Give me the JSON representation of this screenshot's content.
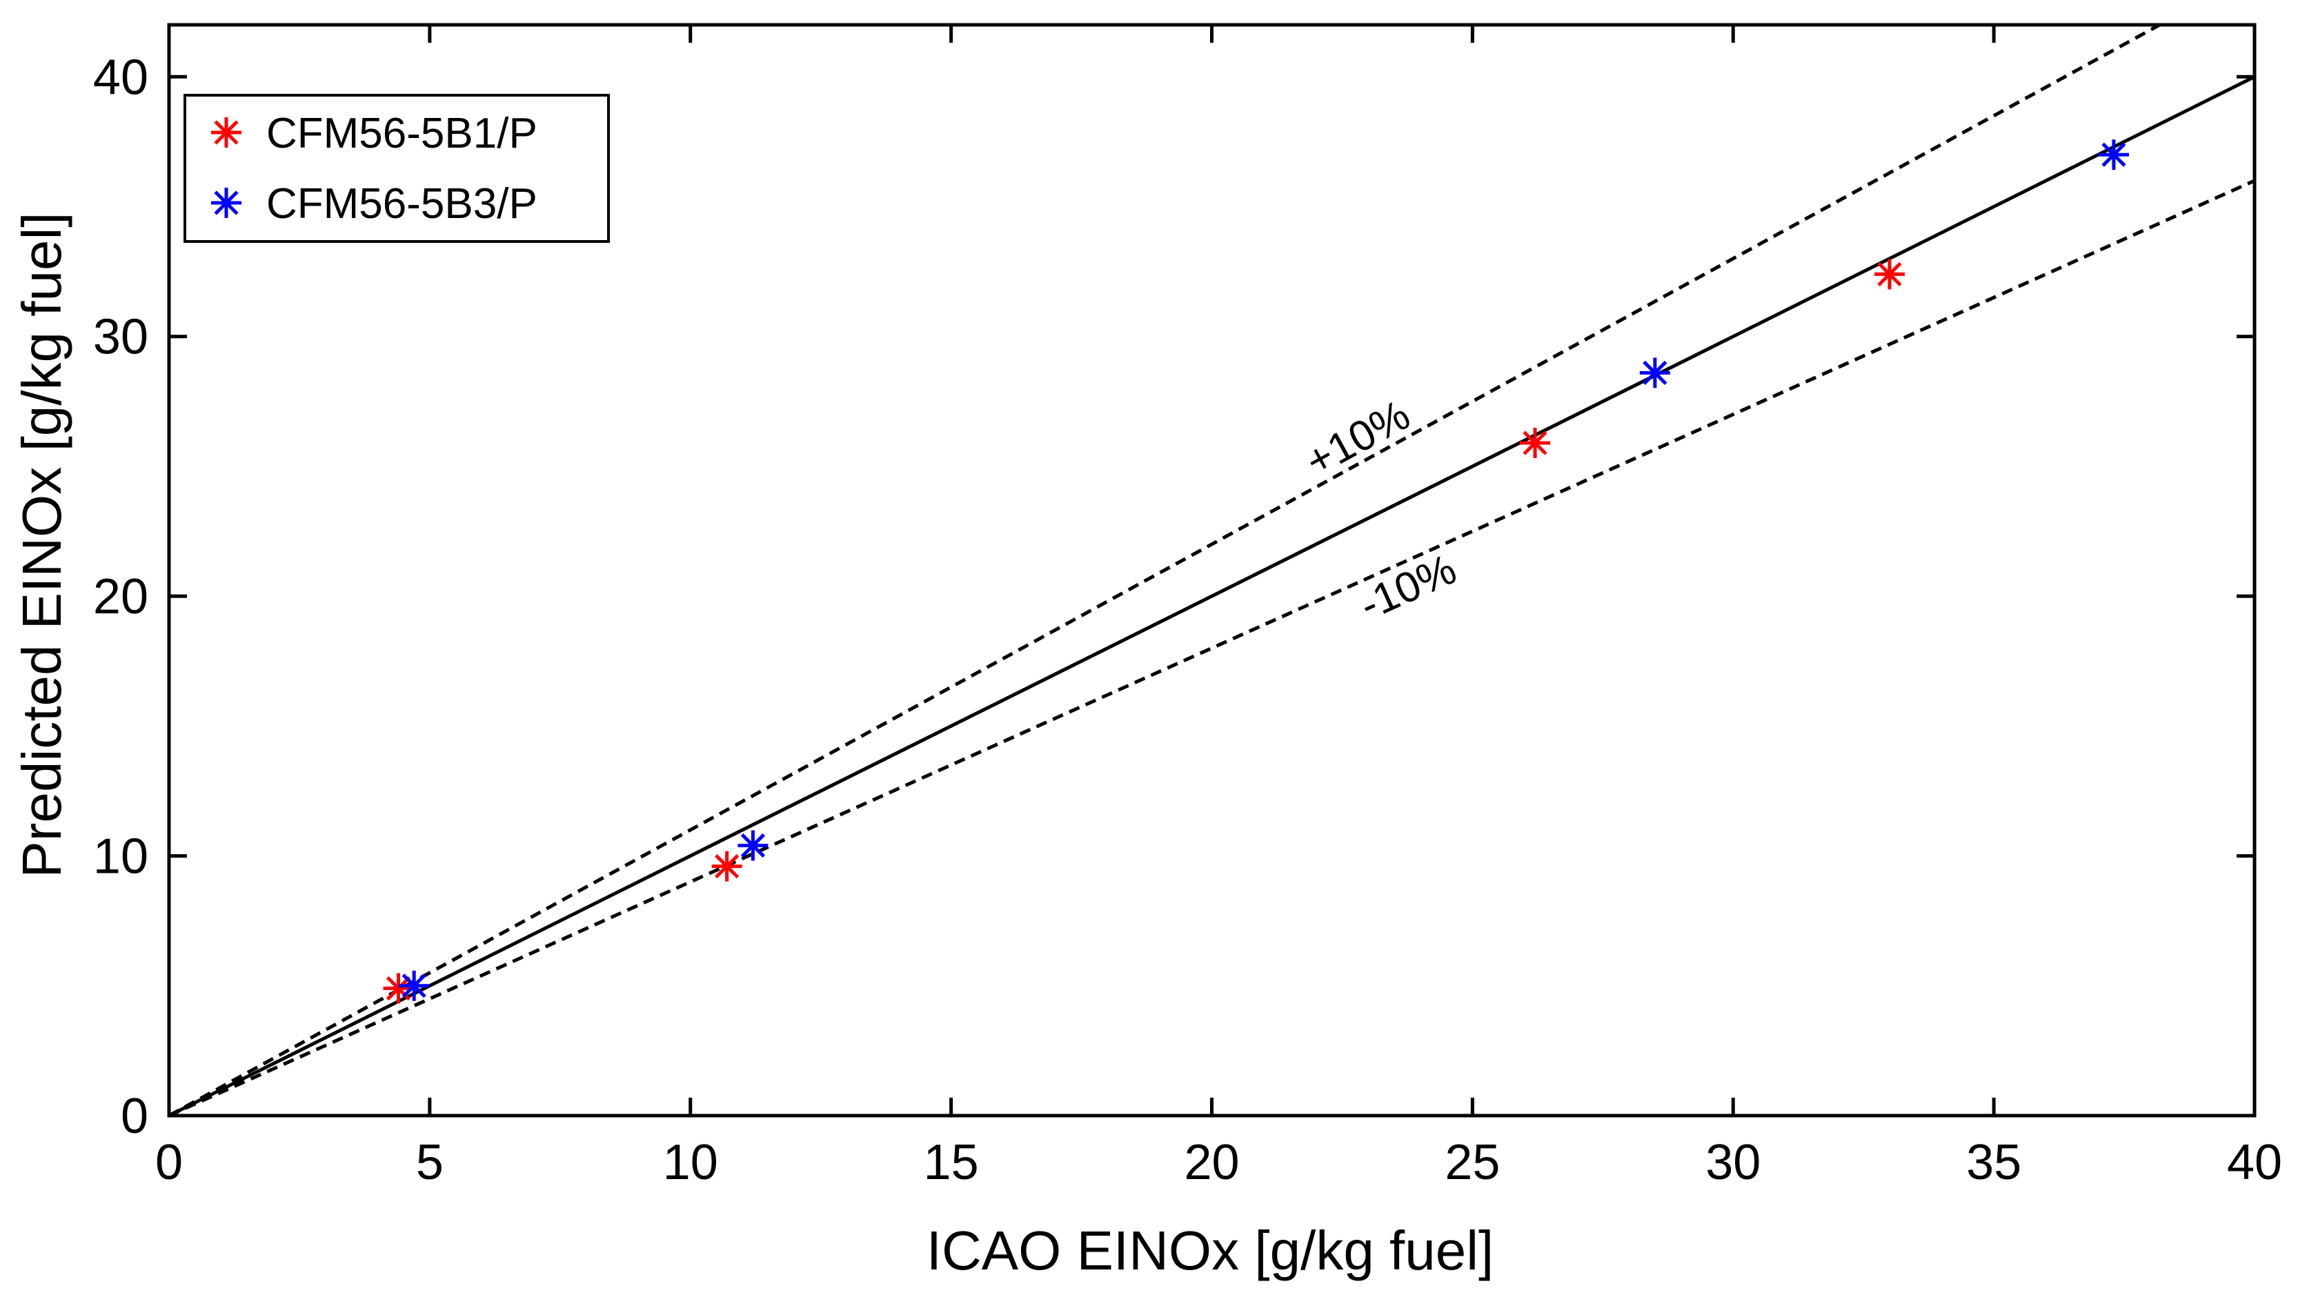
{
  "chart_data": {
    "type": "scatter",
    "title": "",
    "xlabel": "ICAO EINOx [g/kg fuel]",
    "ylabel": "Predicted EINOx [g/kg fuel]",
    "xlim": [
      0,
      40
    ],
    "ylim": [
      0,
      42
    ],
    "x_ticks": [
      0,
      5,
      10,
      15,
      20,
      25,
      30,
      35,
      40
    ],
    "y_ticks": [
      0,
      10,
      20,
      30,
      40
    ],
    "x_tick_labels": [
      "0",
      "5",
      "10",
      "15",
      "20",
      "25",
      "30",
      "35",
      "40"
    ],
    "y_tick_labels": [
      "0",
      "10",
      "20",
      "30",
      "40"
    ],
    "grid": false,
    "legend_position": "top-left",
    "series": [
      {
        "name": "CFM56-5B1/P",
        "color": "#ff0000",
        "marker": "asterisk",
        "x": [
          4.4,
          10.7,
          26.2,
          33.0
        ],
        "y": [
          4.9,
          9.6,
          25.9,
          32.4
        ]
      },
      {
        "name": "CFM56-5B3/P",
        "color": "#0000ff",
        "marker": "asterisk",
        "x": [
          4.7,
          11.2,
          28.5,
          37.3
        ],
        "y": [
          5.0,
          10.4,
          28.6,
          37.0
        ]
      }
    ],
    "reference_lines": [
      {
        "name": "y = x",
        "style": "solid",
        "slope": 1.0
      },
      {
        "name": "+10%",
        "style": "dashed",
        "slope": 1.1,
        "label": "+10%"
      },
      {
        "name": "-10%",
        "style": "dashed",
        "slope": 0.9,
        "label": "-10%"
      }
    ]
  }
}
